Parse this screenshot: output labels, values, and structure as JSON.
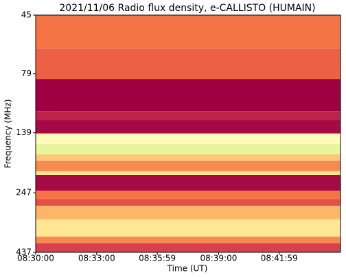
{
  "chart_data": {
    "type": "spectrogram",
    "title": "2021/11/06  Radio flux density, e-CALLISTO (HUMAIN)",
    "x_label": "Time (UT)",
    "y_label": "Frequency (MHz)",
    "xlim": [
      30600,
      31500
    ],
    "xticks": [
      {
        "value": 30600,
        "label": "08:30:00"
      },
      {
        "value": 30780,
        "label": "08:33:00"
      },
      {
        "value": 30959,
        "label": "08:35:59"
      },
      {
        "value": 31140,
        "label": "08:39:00"
      },
      {
        "value": 31319,
        "label": "08:41:59"
      }
    ],
    "ylim": [
      45,
      437
    ],
    "yticks": [
      45,
      79,
      139,
      247,
      437
    ],
    "y_log": true,
    "y_inverted": true,
    "colormap": [
      "#9e0142",
      "#d53e4f",
      "#f46d43",
      "#fdae61",
      "#fee08b",
      "#ffffbf",
      "#e6f598",
      "#abdda4"
    ],
    "bands": [
      {
        "range": [
          45,
          62
        ],
        "level": 0.3
      },
      {
        "range": [
          62,
          83
        ],
        "level": 0.25
      },
      {
        "range": [
          83,
          113
        ],
        "level": 0.0
      },
      {
        "range": [
          113,
          123
        ],
        "level": 0.08
      },
      {
        "range": [
          123,
          140
        ],
        "level": 0.02
      },
      {
        "range": [
          140,
          155
        ],
        "level": 0.7
      },
      {
        "range": [
          155,
          171
        ],
        "level": 0.85
      },
      {
        "range": [
          171,
          182
        ],
        "level": 0.5
      },
      {
        "range": [
          182,
          201
        ],
        "level": 0.35
      },
      {
        "range": [
          201,
          208
        ],
        "level": 0.6
      },
      {
        "range": [
          208,
          242
        ],
        "level": 0.02
      },
      {
        "range": [
          242,
          262
        ],
        "level": 0.3
      },
      {
        "range": [
          262,
          280
        ],
        "level": 0.2
      },
      {
        "range": [
          280,
          319
        ],
        "level": 0.45
      },
      {
        "range": [
          319,
          376
        ],
        "level": 0.6
      },
      {
        "range": [
          376,
          401
        ],
        "level": 0.35
      },
      {
        "range": [
          401,
          437
        ],
        "level": 0.15
      }
    ]
  }
}
